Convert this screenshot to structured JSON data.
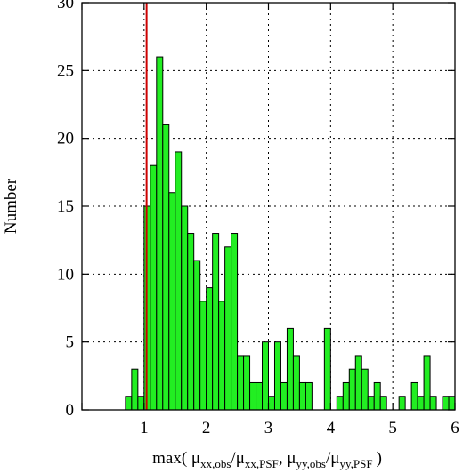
{
  "chart_data": {
    "type": "bar",
    "ylabel": "Number",
    "xlabel_parts": {
      "prefix": "max(",
      "mu": "μ",
      "xx_obs": "xx,obs",
      "xx_psf": "xx,PSF",
      "yy_obs": "yy,obs",
      "yy_psf": "yy,PSF",
      "slash": "/",
      "comma": ", ",
      "close": ")"
    },
    "xlim": [
      0,
      6
    ],
    "ylim": [
      0,
      30
    ],
    "x_ticks": [
      0,
      1,
      2,
      3,
      4,
      5,
      6
    ],
    "x_tick_labels": [
      "",
      "1",
      "2",
      "3",
      "4",
      "5",
      "6"
    ],
    "y_ticks": [
      0,
      5,
      10,
      15,
      20,
      25,
      30
    ],
    "y_tick_labels": [
      "0",
      "5",
      "10",
      "15",
      "20",
      "25",
      "30"
    ],
    "grid": true,
    "bin_width": 0.1,
    "bins_start": [
      0.7,
      0.8,
      0.9,
      1.0,
      1.1,
      1.2,
      1.3,
      1.4,
      1.5,
      1.6,
      1.7,
      1.8,
      1.9,
      2.0,
      2.1,
      2.2,
      2.3,
      2.4,
      2.5,
      2.6,
      2.7,
      2.8,
      2.9,
      3.0,
      3.1,
      3.2,
      3.3,
      3.4,
      3.5,
      3.6,
      3.7,
      3.8,
      3.9,
      4.0,
      4.1,
      4.2,
      4.3,
      4.4,
      4.5,
      4.6,
      4.7,
      4.8,
      4.9,
      5.0,
      5.1,
      5.2,
      5.3,
      5.4,
      5.5,
      5.6,
      5.7,
      5.8,
      5.9
    ],
    "values": [
      1,
      3,
      1,
      15,
      18,
      26,
      21,
      16,
      19,
      15,
      13,
      11,
      8,
      9,
      13,
      8,
      12,
      13,
      4,
      4,
      2,
      2,
      5,
      1,
      5,
      2,
      6,
      4,
      2,
      2,
      0,
      0,
      6,
      0,
      1,
      2,
      3,
      4,
      3,
      1,
      2,
      1,
      0,
      0,
      1,
      0,
      2,
      1,
      4,
      1,
      0,
      1,
      1
    ],
    "vline_x": 1.04,
    "colors": {
      "bar_fill": "#22ee22",
      "bar_stroke": "#000000",
      "vline": "#cc0000"
    }
  }
}
